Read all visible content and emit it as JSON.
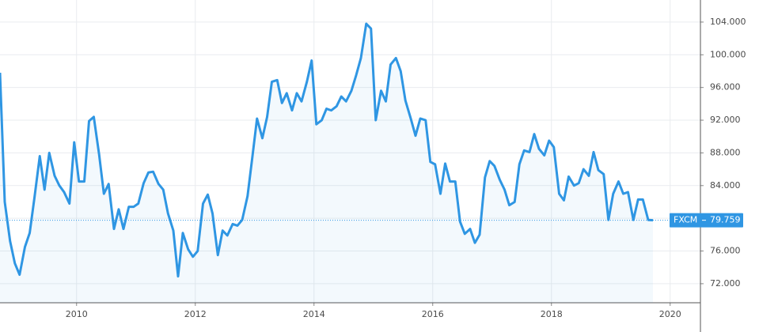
{
  "chart_data": {
    "type": "line",
    "x": [
      2008.71,
      2008.79,
      2008.88,
      2008.96,
      2009.04,
      2009.13,
      2009.21,
      2009.29,
      2009.38,
      2009.46,
      2009.54,
      2009.63,
      2009.71,
      2009.79,
      2009.88,
      2009.96,
      2010.04,
      2010.13,
      2010.21,
      2010.29,
      2010.38,
      2010.46,
      2010.54,
      2010.63,
      2010.71,
      2010.79,
      2010.88,
      2010.96,
      2011.04,
      2011.13,
      2011.21,
      2011.29,
      2011.38,
      2011.46,
      2011.54,
      2011.63,
      2011.71,
      2011.79,
      2011.88,
      2011.96,
      2012.04,
      2012.13,
      2012.21,
      2012.29,
      2012.38,
      2012.46,
      2012.54,
      2012.63,
      2012.71,
      2012.79,
      2012.88,
      2012.96,
      2013.04,
      2013.13,
      2013.21,
      2013.29,
      2013.38,
      2013.46,
      2013.54,
      2013.63,
      2013.71,
      2013.79,
      2013.88,
      2013.96,
      2014.04,
      2014.13,
      2014.21,
      2014.29,
      2014.38,
      2014.46,
      2014.54,
      2014.63,
      2014.71,
      2014.79,
      2014.88,
      2014.96,
      2015.04,
      2015.13,
      2015.21,
      2015.29,
      2015.38,
      2015.46,
      2015.54,
      2015.63,
      2015.71,
      2015.79,
      2015.88,
      2015.96,
      2016.04,
      2016.13,
      2016.21,
      2016.29,
      2016.38,
      2016.46,
      2016.54,
      2016.63,
      2016.71,
      2016.79,
      2016.88,
      2016.96,
      2017.04,
      2017.13,
      2017.21,
      2017.29,
      2017.38,
      2017.46,
      2017.54,
      2017.63,
      2017.71,
      2017.79,
      2017.88,
      2017.96,
      2018.04,
      2018.13,
      2018.21,
      2018.29,
      2018.38,
      2018.46,
      2018.54,
      2018.63,
      2018.71,
      2018.79,
      2018.88,
      2018.96,
      2019.04,
      2019.13,
      2019.21,
      2019.29,
      2019.38,
      2019.46,
      2019.54,
      2019.63,
      2019.71
    ],
    "series": [
      {
        "name": "FXCM",
        "color": "#2f96e3",
        "values": [
          97.8,
          82.0,
          77.2,
          74.5,
          73.1,
          76.5,
          78.2,
          82.5,
          87.6,
          83.5,
          88.0,
          85.2,
          84.0,
          83.2,
          81.8,
          89.3,
          84.5,
          84.5,
          91.9,
          92.4,
          87.8,
          83.0,
          84.2,
          78.7,
          81.1,
          78.7,
          81.4,
          81.4,
          81.8,
          84.3,
          85.6,
          85.7,
          84.2,
          83.5,
          80.6,
          78.5,
          72.9,
          78.2,
          76.2,
          75.3,
          76.0,
          81.8,
          82.9,
          80.6,
          75.5,
          78.5,
          77.9,
          79.3,
          79.1,
          79.8,
          82.7,
          87.4,
          92.2,
          89.8,
          92.4,
          96.7,
          96.9,
          94.1,
          95.3,
          93.2,
          95.3,
          94.3,
          96.7,
          99.3,
          91.5,
          92.0,
          93.4,
          93.2,
          93.7,
          94.9,
          94.3,
          95.6,
          97.5,
          99.6,
          103.8,
          103.2,
          92.0,
          95.6,
          94.3,
          98.8,
          99.6,
          98.0,
          94.4,
          92.2,
          90.1,
          92.2,
          92.0,
          86.9,
          86.6,
          83.0,
          86.7,
          84.5,
          84.5,
          79.6,
          78.1,
          78.7,
          77.0,
          78.0,
          85.0,
          87.0,
          86.4,
          84.7,
          83.5,
          81.6,
          82.0,
          86.6,
          88.3,
          88.1,
          90.3,
          88.5,
          87.7,
          89.5,
          88.7,
          83.0,
          82.2,
          85.1,
          84.0,
          84.3,
          86.0,
          85.2,
          88.1,
          85.9,
          85.4,
          79.8,
          83.0,
          84.5,
          83.0,
          83.2,
          79.8,
          82.3,
          82.3,
          79.8,
          79.759
        ]
      }
    ],
    "current_value": {
      "value": 79.759,
      "label": "79.759"
    },
    "xlim": [
      2008.71,
      2020.51
    ],
    "ylim": [
      69.67,
      106.7
    ],
    "xticks": [
      2010,
      2012,
      2014,
      2016,
      2018,
      2020
    ],
    "yticks": [
      {
        "value": 72,
        "label": "72.000"
      },
      {
        "value": 76,
        "label": "76.000"
      },
      {
        "value": 80,
        "label": "80.000"
      },
      {
        "value": 84,
        "label": "84.000"
      },
      {
        "value": 88,
        "label": "88.000"
      },
      {
        "value": 92,
        "label": "92.000"
      },
      {
        "value": 96,
        "label": "96.000"
      },
      {
        "value": 100,
        "label": "100.000"
      },
      {
        "value": 104,
        "label": "104.000"
      }
    ],
    "grid": true
  }
}
